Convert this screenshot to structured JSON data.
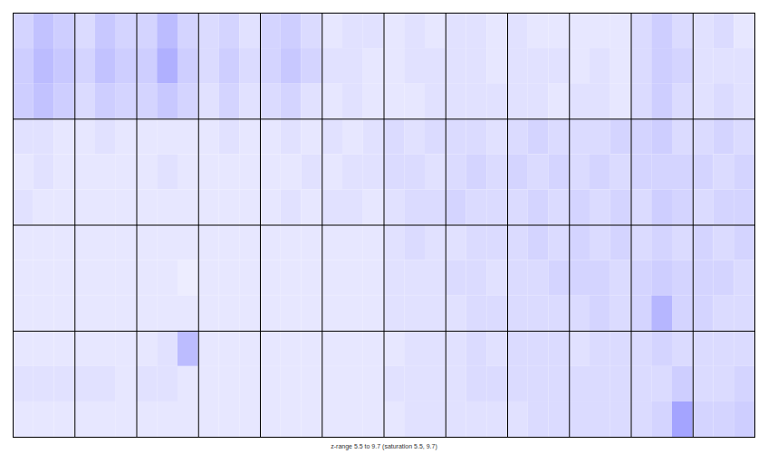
{
  "chart_data": {
    "type": "heatmap",
    "caption": "z-range 5.5 to 9.7 (saturation 5.5, 9.7)",
    "zlim": [
      5.5,
      9.7
    ],
    "panels": [
      4,
      12
    ],
    "cells": [
      [
        6.2,
        6.5,
        6.3,
        6.1,
        6.4,
        6.2,
        6.2,
        6.6,
        6.2,
        6.1,
        6.2,
        6.0,
        6.2,
        6.3,
        6.1,
        5.9,
        6.0,
        6.0,
        5.9,
        6.0,
        5.9,
        6.0,
        6.0,
        5.9,
        6.0,
        5.9,
        5.9,
        5.9,
        5.9,
        5.9,
        6.1,
        6.3,
        6.1,
        6.0,
        6.1,
        5.9
      ],
      [
        6.3,
        6.6,
        6.4,
        6.2,
        6.5,
        6.3,
        6.3,
        6.8,
        6.3,
        6.1,
        6.3,
        6.1,
        6.2,
        6.4,
        6.2,
        6.0,
        6.0,
        5.9,
        5.9,
        6.0,
        6.0,
        6.0,
        6.0,
        5.9,
        6.0,
        6.0,
        6.0,
        5.9,
        6.0,
        5.9,
        6.1,
        6.3,
        6.2,
        6.0,
        6.0,
        6.0
      ],
      [
        6.3,
        6.5,
        6.3,
        6.1,
        6.3,
        6.2,
        6.2,
        6.4,
        6.2,
        6.0,
        6.2,
        6.0,
        6.1,
        6.2,
        6.0,
        5.9,
        6.0,
        5.9,
        5.9,
        5.9,
        6.0,
        6.0,
        6.0,
        6.0,
        6.0,
        6.0,
        5.9,
        6.0,
        6.0,
        5.9,
        6.1,
        6.3,
        6.1,
        6.0,
        6.1,
        6.0
      ],
      [
        6.0,
        6.0,
        5.9,
        5.9,
        6.0,
        5.9,
        5.9,
        5.9,
        5.9,
        5.9,
        6.0,
        5.9,
        5.9,
        6.0,
        5.9,
        6.0,
        5.9,
        6.0,
        6.1,
        6.0,
        6.1,
        6.1,
        6.1,
        6.0,
        6.1,
        6.2,
        6.1,
        6.1,
        6.1,
        6.2,
        6.2,
        6.3,
        6.1,
        6.1,
        6.2,
        6.1
      ],
      [
        5.9,
        6.0,
        5.9,
        5.9,
        5.9,
        5.9,
        5.9,
        6.0,
        5.9,
        5.9,
        5.9,
        5.9,
        5.9,
        5.9,
        6.0,
        5.9,
        6.0,
        6.0,
        6.1,
        6.1,
        6.0,
        6.1,
        6.2,
        6.1,
        6.2,
        6.1,
        6.2,
        6.1,
        6.2,
        6.1,
        6.2,
        6.2,
        6.2,
        6.2,
        6.1,
        6.2
      ],
      [
        6.0,
        5.9,
        5.9,
        5.9,
        5.9,
        5.9,
        5.9,
        5.9,
        5.9,
        5.9,
        5.9,
        5.9,
        5.9,
        6.0,
        5.9,
        6.0,
        6.0,
        5.9,
        6.0,
        6.1,
        6.1,
        6.2,
        6.1,
        6.1,
        6.1,
        6.2,
        6.1,
        6.2,
        6.1,
        6.2,
        6.1,
        6.3,
        6.2,
        6.1,
        6.2,
        6.2
      ],
      [
        5.9,
        5.9,
        5.9,
        5.9,
        5.9,
        5.9,
        5.9,
        5.9,
        5.9,
        5.9,
        5.9,
        5.9,
        5.9,
        5.9,
        5.9,
        5.9,
        5.9,
        5.9,
        6.0,
        6.1,
        6.0,
        6.0,
        6.1,
        6.1,
        6.1,
        6.2,
        6.1,
        6.2,
        6.1,
        6.2,
        6.1,
        6.2,
        6.1,
        6.2,
        6.1,
        6.2
      ],
      [
        5.9,
        5.9,
        5.9,
        5.9,
        5.9,
        5.9,
        5.9,
        5.9,
        5.8,
        5.9,
        5.9,
        5.9,
        5.9,
        5.9,
        5.9,
        5.9,
        5.9,
        5.9,
        6.0,
        6.0,
        6.0,
        6.1,
        6.1,
        6.0,
        6.1,
        6.1,
        6.2,
        6.2,
        6.2,
        6.1,
        6.2,
        6.3,
        6.2,
        6.2,
        6.2,
        6.1
      ],
      [
        5.9,
        5.9,
        5.9,
        5.9,
        5.9,
        5.9,
        5.9,
        5.9,
        5.9,
        5.9,
        5.9,
        5.9,
        5.9,
        5.9,
        5.9,
        5.9,
        5.9,
        5.9,
        6.0,
        6.0,
        6.0,
        6.0,
        6.1,
        6.1,
        6.1,
        6.1,
        6.1,
        6.1,
        6.2,
        6.1,
        6.2,
        6.7,
        6.2,
        6.2,
        6.1,
        6.1
      ],
      [
        5.9,
        5.9,
        5.9,
        5.9,
        5.9,
        5.9,
        5.9,
        6.0,
        6.6,
        5.9,
        5.9,
        5.9,
        5.9,
        5.9,
        5.9,
        5.9,
        5.9,
        5.9,
        5.9,
        6.0,
        6.0,
        6.0,
        6.1,
        6.0,
        6.1,
        6.1,
        6.1,
        6.0,
        6.1,
        6.1,
        6.1,
        6.2,
        6.1,
        6.1,
        6.1,
        6.1
      ],
      [
        6.0,
        6.0,
        6.0,
        6.0,
        6.0,
        5.9,
        6.0,
        6.0,
        5.9,
        5.9,
        5.9,
        5.9,
        5.9,
        5.9,
        5.9,
        5.9,
        5.9,
        5.9,
        6.0,
        6.0,
        6.0,
        6.0,
        6.1,
        6.1,
        6.1,
        6.1,
        6.1,
        6.1,
        6.1,
        6.1,
        6.1,
        6.1,
        6.3,
        6.1,
        6.1,
        6.2
      ],
      [
        5.9,
        5.9,
        5.9,
        5.9,
        5.9,
        5.9,
        5.9,
        5.9,
        5.9,
        5.9,
        5.9,
        5.9,
        5.9,
        5.9,
        5.9,
        5.9,
        5.9,
        5.9,
        5.9,
        6.0,
        6.0,
        6.0,
        6.0,
        6.0,
        6.0,
        6.1,
        6.1,
        6.1,
        6.1,
        6.1,
        6.1,
        6.2,
        7.0,
        6.2,
        6.2,
        6.3
      ]
    ]
  }
}
